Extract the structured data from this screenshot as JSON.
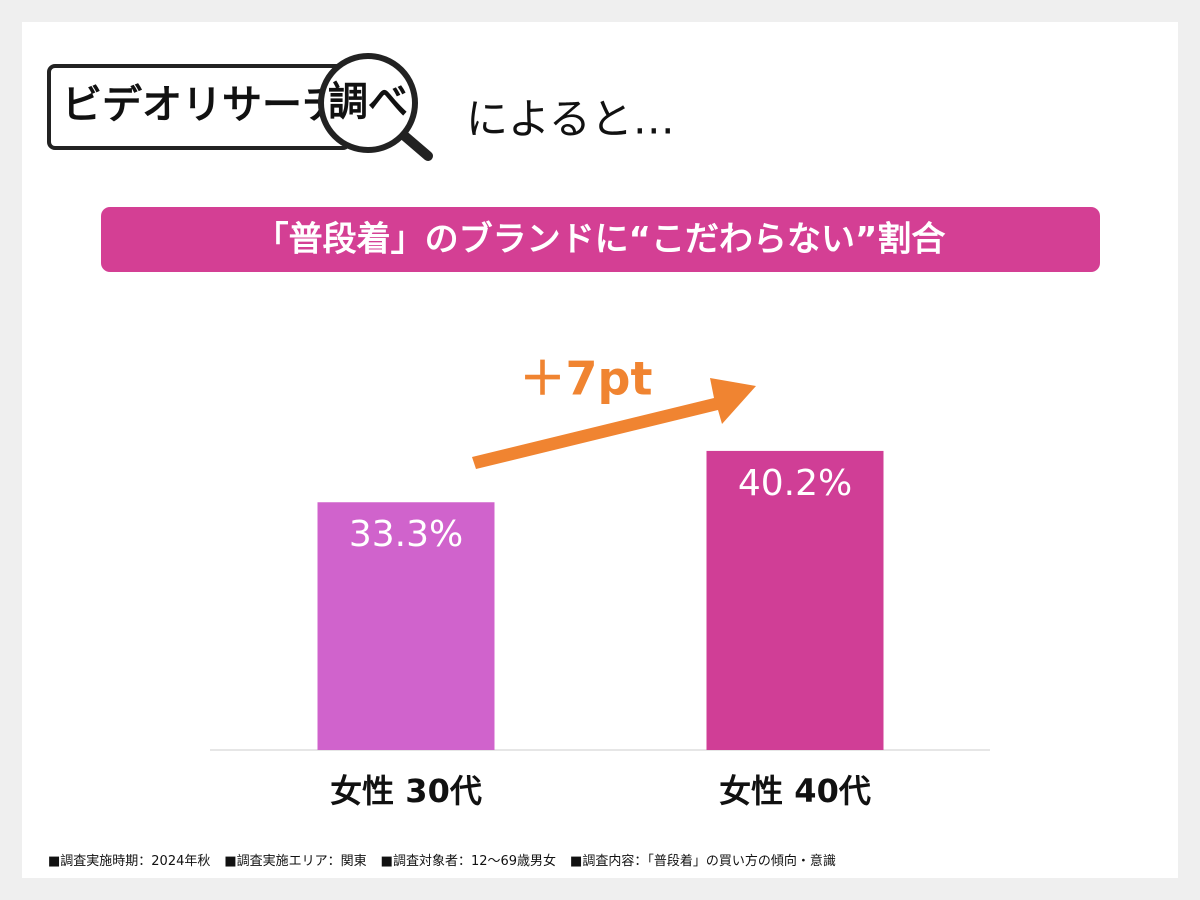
{
  "chart_data": {
    "type": "bar",
    "brand": "ビデオリサーチ",
    "brand_badge": "調べ",
    "intro": "によると…",
    "title": "「普段着」のブランドに“こだわらない”割合",
    "annotation": "＋7pt",
    "categories": [
      "女性 30代",
      "女性 40代"
    ],
    "values": [
      33.3,
      40.2
    ],
    "value_labels": [
      "33.3%",
      "40.2%"
    ],
    "colors": [
      "#d063cc",
      "#d03e96"
    ],
    "notes": [
      "■調査実施時期：2024年秋",
      "■調査実施エリア：関東",
      "■調査対象者：12～69歳男女",
      "■調査内容：「普段着」の買い方の傾向・意識"
    ]
  }
}
